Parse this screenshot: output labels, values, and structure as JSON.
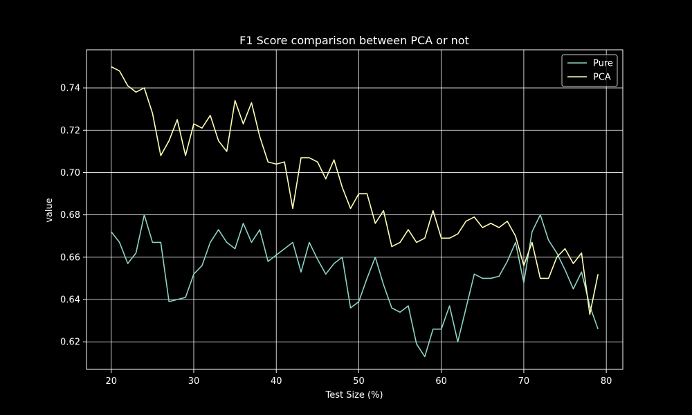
{
  "chart_data": {
    "type": "line",
    "title": "F1 Score comparison between PCA or not",
    "xlabel": "Test Size (%)",
    "ylabel": "value",
    "xlim": [
      17,
      82
    ],
    "ylim": [
      0.607,
      0.758
    ],
    "xticks": [
      20,
      30,
      40,
      50,
      60,
      70,
      80
    ],
    "xtick_labels": [
      "20",
      "30",
      "40",
      "50",
      "60",
      "70",
      "80"
    ],
    "yticks": [
      0.62,
      0.64,
      0.66,
      0.68,
      0.7,
      0.72,
      0.74
    ],
    "ytick_labels": [
      "0.62",
      "0.64",
      "0.66",
      "0.68",
      "0.70",
      "0.72",
      "0.74"
    ],
    "grid": true,
    "legend_position": "top-right",
    "x": [
      20,
      21,
      22,
      23,
      24,
      25,
      26,
      27,
      28,
      29,
      30,
      31,
      32,
      33,
      34,
      35,
      36,
      37,
      38,
      39,
      40,
      41,
      42,
      43,
      44,
      45,
      46,
      47,
      48,
      49,
      50,
      51,
      52,
      53,
      54,
      55,
      56,
      57,
      58,
      59,
      60,
      61,
      62,
      63,
      64,
      65,
      66,
      67,
      68,
      69,
      70,
      71,
      72,
      73,
      74,
      75,
      76,
      77,
      78,
      79
    ],
    "series": [
      {
        "name": "Pure",
        "color": "#8dd3c7",
        "values": [
          0.672,
          0.667,
          0.657,
          0.662,
          0.68,
          0.667,
          0.667,
          0.639,
          0.64,
          0.641,
          0.652,
          0.656,
          0.667,
          0.673,
          0.667,
          0.664,
          0.676,
          0.667,
          0.673,
          0.658,
          0.661,
          0.664,
          0.667,
          0.653,
          0.667,
          0.659,
          0.652,
          0.657,
          0.66,
          0.636,
          0.639,
          0.65,
          0.66,
          0.647,
          0.636,
          0.634,
          0.637,
          0.619,
          0.613,
          0.626,
          0.626,
          0.637,
          0.62,
          0.636,
          0.652,
          0.65,
          0.65,
          0.651,
          0.658,
          0.667,
          0.648,
          0.672,
          0.68,
          0.668,
          0.662,
          0.654,
          0.645,
          0.653,
          0.637,
          0.626
        ]
      },
      {
        "name": "PCA",
        "color": "#ffffb3",
        "values": [
          0.75,
          0.748,
          0.741,
          0.738,
          0.74,
          0.728,
          0.708,
          0.715,
          0.725,
          0.708,
          0.723,
          0.721,
          0.727,
          0.715,
          0.71,
          0.734,
          0.723,
          0.733,
          0.717,
          0.705,
          0.704,
          0.705,
          0.683,
          0.707,
          0.707,
          0.705,
          0.697,
          0.706,
          0.693,
          0.683,
          0.69,
          0.69,
          0.676,
          0.682,
          0.665,
          0.667,
          0.673,
          0.667,
          0.669,
          0.682,
          0.669,
          0.669,
          0.671,
          0.677,
          0.679,
          0.674,
          0.676,
          0.674,
          0.677,
          0.67,
          0.656,
          0.667,
          0.65,
          0.65,
          0.66,
          0.664,
          0.657,
          0.662,
          0.633,
          0.652
        ]
      }
    ]
  }
}
